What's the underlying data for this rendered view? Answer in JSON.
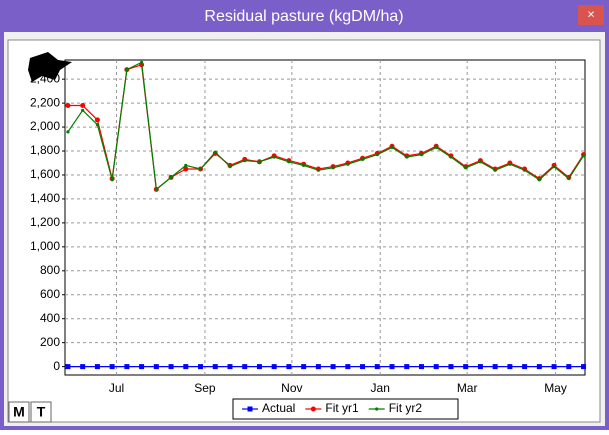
{
  "window": {
    "title": "Residual pasture (kgDM/ha)",
    "close": "×",
    "buttons": [
      "M",
      "T"
    ]
  },
  "chart_data": {
    "type": "line",
    "x": [
      0,
      1,
      2,
      3,
      4,
      5,
      6,
      7,
      8,
      9,
      10,
      11,
      12,
      13,
      14,
      15,
      16,
      17,
      18,
      19,
      20,
      21,
      22,
      23,
      24,
      25,
      26,
      27,
      28,
      29,
      30,
      31,
      32,
      33,
      34,
      35
    ],
    "series": [
      {
        "name": "Actual",
        "color": "#0000ff",
        "marker": "square",
        "values": [
          0,
          0,
          0,
          0,
          0,
          0,
          0,
          0,
          0,
          0,
          0,
          0,
          0,
          0,
          0,
          0,
          0,
          0,
          0,
          0,
          0,
          0,
          0,
          0,
          0,
          0,
          0,
          0,
          0,
          0,
          0,
          0,
          0,
          0,
          0,
          0
        ]
      },
      {
        "name": "Fit yr1",
        "color": "#ff0000",
        "marker": "circle",
        "values": [
          2180,
          2180,
          2060,
          1570,
          2480,
          2520,
          1480,
          1580,
          1650,
          1650,
          1780,
          1680,
          1730,
          1710,
          1760,
          1720,
          1690,
          1650,
          1670,
          1700,
          1740,
          1780,
          1840,
          1760,
          1780,
          1840,
          1760,
          1670,
          1720,
          1650,
          1700,
          1650,
          1570,
          1680,
          1580,
          1770
        ]
      },
      {
        "name": "Fit yr2",
        "color": "#008000",
        "marker": "dot",
        "values": [
          1960,
          2140,
          2020,
          1560,
          2480,
          2540,
          1480,
          1580,
          1680,
          1650,
          1790,
          1670,
          1720,
          1710,
          1750,
          1710,
          1680,
          1640,
          1660,
          1690,
          1730,
          1770,
          1830,
          1750,
          1770,
          1830,
          1750,
          1660,
          1710,
          1640,
          1690,
          1640,
          1560,
          1670,
          1570,
          1760
        ]
      }
    ],
    "xlim": [
      -0.2,
      35.1
    ],
    "xticks": [
      {
        "value": 3.3,
        "label": "Jul"
      },
      {
        "value": 9.3,
        "label": "Sep"
      },
      {
        "value": 15.2,
        "label": "Nov"
      },
      {
        "value": 21.2,
        "label": "Jan"
      },
      {
        "value": 27.1,
        "label": "Mar"
      },
      {
        "value": 33.1,
        "label": "May"
      }
    ],
    "ylim": [
      -70,
      2560
    ],
    "yticks": [
      0,
      200,
      400,
      600,
      800,
      {
        "value": 1000,
        "label": "1,000"
      },
      {
        "value": 1200,
        "label": "1,200"
      },
      {
        "value": 1400,
        "label": "1,400"
      },
      {
        "value": 1600,
        "label": "1,600"
      },
      {
        "value": 1800,
        "label": "1,800"
      },
      {
        "value": 2000,
        "label": "2,000"
      },
      {
        "value": 2200,
        "label": "2,200"
      },
      {
        "value": 2400,
        "label": "2,400"
      }
    ],
    "grid": true,
    "legend": "bottom"
  }
}
